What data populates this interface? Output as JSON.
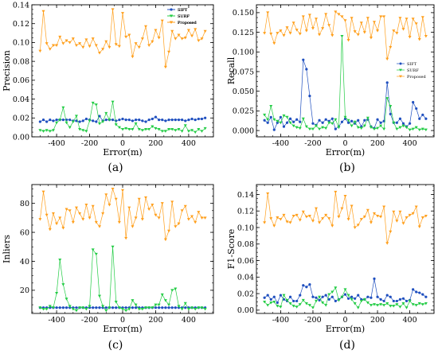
{
  "colors": {
    "SIFT": "#1f4fbf",
    "SURF": "#22cc44",
    "Proposed": "#ff9f1c"
  },
  "chart_data": [
    {
      "type": "line",
      "panel_label": "(a)",
      "xlabel": "Error(m)",
      "ylabel": "Precision",
      "xlim": [
        -550,
        550
      ],
      "ylim": [
        0,
        0.14
      ],
      "xticks": [
        -400,
        -200,
        0,
        200,
        400
      ],
      "yticks": [
        0.0,
        0.02,
        0.04,
        0.06,
        0.08,
        0.1,
        0.12,
        0.14
      ],
      "ytick_labels": [
        "0.00",
        "0.02",
        "0.04",
        "0.06",
        "0.08",
        "0.10",
        "0.12",
        "0.14"
      ],
      "legend_position": "top-right",
      "x": [
        -500,
        -480,
        -460,
        -440,
        -420,
        -400,
        -380,
        -360,
        -340,
        -320,
        -300,
        -280,
        -260,
        -240,
        -220,
        -200,
        -180,
        -160,
        -140,
        -120,
        -100,
        -80,
        -60,
        -40,
        -20,
        0,
        20,
        40,
        60,
        80,
        100,
        120,
        140,
        160,
        180,
        200,
        220,
        240,
        260,
        280,
        300,
        320,
        340,
        360,
        380,
        400,
        420,
        440,
        460,
        480,
        500
      ],
      "series": [
        {
          "name": "SIFT",
          "marker": "circle",
          "values": [
            0.016,
            0.018,
            0.016,
            0.018,
            0.017,
            0.018,
            0.018,
            0.018,
            0.018,
            0.018,
            0.017,
            0.017,
            0.016,
            0.017,
            0.019,
            0.018,
            0.017,
            0.016,
            0.022,
            0.017,
            0.018,
            0.018,
            0.018,
            0.017,
            0.018,
            0.019,
            0.018,
            0.018,
            0.017,
            0.018,
            0.018,
            0.017,
            0.016,
            0.018,
            0.019,
            0.021,
            0.018,
            0.018,
            0.017,
            0.018,
            0.018,
            0.018,
            0.018,
            0.018,
            0.017,
            0.018,
            0.019,
            0.018,
            0.019,
            0.019,
            0.02
          ]
        },
        {
          "name": "SURF",
          "marker": "triangle-down",
          "values": [
            0.007,
            0.006,
            0.007,
            0.006,
            0.007,
            0.015,
            0.018,
            0.031,
            0.015,
            0.01,
            0.016,
            0.022,
            0.008,
            0.007,
            0.006,
            0.017,
            0.036,
            0.034,
            0.014,
            0.016,
            0.025,
            0.018,
            0.037,
            0.013,
            0.01,
            0.008,
            0.009,
            0.008,
            0.008,
            0.014,
            0.008,
            0.007,
            0.008,
            0.008,
            0.011,
            0.009,
            0.008,
            0.006,
            0.006,
            0.008,
            0.008,
            0.007,
            0.008,
            0.006,
            0.012,
            0.006,
            0.007,
            0.005,
            0.008,
            0.006,
            0.009
          ]
        },
        {
          "name": "Proposed",
          "marker": "triangle-down",
          "values": [
            0.091,
            0.133,
            0.099,
            0.093,
            0.097,
            0.097,
            0.106,
            0.099,
            0.102,
            0.1,
            0.104,
            0.097,
            0.099,
            0.095,
            0.103,
            0.096,
            0.104,
            0.097,
            0.089,
            0.093,
            0.101,
            0.095,
            0.135,
            0.098,
            0.096,
            0.131,
            0.106,
            0.108,
            0.085,
            0.099,
            0.095,
            0.104,
            0.117,
            0.097,
            0.101,
            0.113,
            0.105,
            0.123,
            0.074,
            0.09,
            0.112,
            0.104,
            0.108,
            0.104,
            0.105,
            0.113,
            0.107,
            0.114,
            0.102,
            0.104,
            0.112
          ]
        }
      ]
    },
    {
      "type": "line",
      "panel_label": "(b)",
      "xlabel": "Error(m)",
      "ylabel": "Recall",
      "xlim": [
        -550,
        550
      ],
      "ylim": [
        -0.008,
        0.16
      ],
      "xticks": [
        -400,
        -200,
        0,
        200,
        400
      ],
      "yticks": [
        0.0,
        0.025,
        0.05,
        0.075,
        0.1,
        0.125,
        0.15
      ],
      "ytick_labels": [
        "0.000",
        "0.025",
        "0.050",
        "0.075",
        "0.100",
        "0.125",
        "0.150"
      ],
      "legend_position": "center-right",
      "x": [
        -500,
        -480,
        -460,
        -440,
        -420,
        -400,
        -380,
        -360,
        -340,
        -320,
        -300,
        -280,
        -260,
        -240,
        -220,
        -200,
        -180,
        -160,
        -140,
        -120,
        -100,
        -80,
        -60,
        -40,
        -20,
        0,
        20,
        40,
        60,
        80,
        100,
        120,
        140,
        160,
        180,
        200,
        220,
        240,
        260,
        280,
        300,
        320,
        340,
        360,
        380,
        400,
        420,
        440,
        460,
        480,
        500
      ],
      "series": [
        {
          "name": "SIFT",
          "marker": "circle",
          "values": [
            0.013,
            0.01,
            0.017,
            0.001,
            0.01,
            0.017,
            0.005,
            0.01,
            0.015,
            0.011,
            0.014,
            0.011,
            0.09,
            0.078,
            0.044,
            0.009,
            0.007,
            0.013,
            0.01,
            0.014,
            0.012,
            0.015,
            0.002,
            0.005,
            0.011,
            0.015,
            0.01,
            0.012,
            0.009,
            0.013,
            0.005,
            0.013,
            0.014,
            0.005,
            0.003,
            0.014,
            0.01,
            0.012,
            0.061,
            0.021,
            0.01,
            0.01,
            0.015,
            0.009,
            0.005,
            0.009,
            0.036,
            0.028,
            0.015,
            0.02,
            0.015
          ]
        },
        {
          "name": "SURF",
          "marker": "triangle-down",
          "values": [
            0.02,
            0.014,
            0.031,
            0.014,
            0.012,
            0.01,
            0.019,
            0.017,
            0.01,
            0.006,
            0.004,
            0.003,
            0.015,
            0.005,
            0.002,
            0.002,
            0.006,
            0.002,
            0.004,
            0.003,
            0.01,
            0.009,
            0.014,
            0.004,
            0.12,
            0.017,
            0.013,
            0.006,
            0.011,
            0.004,
            0.003,
            0.006,
            0.016,
            0.004,
            0.002,
            0.003,
            0.006,
            0.002,
            0.041,
            0.031,
            0.01,
            0.002,
            0.004,
            0.006,
            0.004,
            0.001,
            0.002,
            0.004,
            0.001,
            0.002,
            0.001
          ]
        },
        {
          "name": "Proposed",
          "marker": "triangle-down",
          "values": [
            0.124,
            0.15,
            0.123,
            0.111,
            0.124,
            0.127,
            0.121,
            0.131,
            0.124,
            0.137,
            0.128,
            0.123,
            0.145,
            0.127,
            0.147,
            0.13,
            0.142,
            0.122,
            0.13,
            0.148,
            0.134,
            0.121,
            0.151,
            0.148,
            0.145,
            0.14,
            0.115,
            0.143,
            0.126,
            0.122,
            0.137,
            0.125,
            0.143,
            0.118,
            0.138,
            0.127,
            0.145,
            0.145,
            0.091,
            0.106,
            0.127,
            0.124,
            0.143,
            0.129,
            0.142,
            0.119,
            0.142,
            0.136,
            0.116,
            0.144,
            0.12
          ]
        }
      ]
    },
    {
      "type": "line",
      "panel_label": "(c)",
      "xlabel": "Error(m)",
      "ylabel": "Inliers",
      "xlim": [
        -550,
        550
      ],
      "ylim": [
        4,
        93
      ],
      "xticks": [
        -400,
        -200,
        0,
        200,
        400
      ],
      "yticks": [
        20,
        40,
        60,
        80
      ],
      "ytick_labels": [
        "20",
        "40",
        "60",
        "80"
      ],
      "legend_position": "top-right",
      "x": [
        -500,
        -480,
        -460,
        -440,
        -420,
        -400,
        -380,
        -360,
        -340,
        -320,
        -300,
        -280,
        -260,
        -240,
        -220,
        -200,
        -180,
        -160,
        -140,
        -120,
        -100,
        -80,
        -60,
        -40,
        -20,
        0,
        20,
        40,
        60,
        80,
        100,
        120,
        140,
        160,
        180,
        200,
        220,
        240,
        260,
        280,
        300,
        320,
        340,
        360,
        380,
        400,
        420,
        440,
        460,
        480,
        500
      ],
      "series": [
        {
          "name": "SIFT",
          "marker": "circle",
          "values": [
            8,
            8,
            8,
            8,
            8,
            8,
            8,
            8,
            8,
            8,
            8,
            8,
            8,
            8,
            8,
            8,
            8,
            8,
            8,
            8,
            8,
            8,
            8,
            8,
            8,
            8,
            8,
            8,
            8,
            8,
            8,
            8,
            8,
            8,
            8,
            8,
            8,
            8,
            8,
            8,
            8,
            8,
            8,
            8,
            8,
            8,
            8,
            8,
            8,
            8,
            8
          ]
        },
        {
          "name": "SURF",
          "marker": "triangle-down",
          "values": [
            8,
            7,
            7,
            9,
            8,
            18,
            41,
            24,
            14,
            9,
            7,
            6,
            8,
            8,
            7,
            9,
            48,
            45,
            16,
            9,
            6,
            8,
            50,
            12,
            8,
            7,
            6,
            7,
            13,
            10,
            7,
            7,
            8,
            8,
            8,
            10,
            10,
            17,
            13,
            10,
            20,
            21,
            9,
            7,
            11,
            7,
            8,
            7,
            8,
            8,
            7
          ]
        },
        {
          "name": "Proposed",
          "marker": "triangle-down",
          "values": [
            69,
            88,
            72,
            62,
            73,
            66,
            70,
            63,
            76,
            75,
            67,
            77,
            73,
            69,
            79,
            70,
            78,
            67,
            64,
            73,
            86,
            79,
            90,
            83,
            67,
            89,
            56,
            77,
            64,
            70,
            83,
            69,
            84,
            76,
            79,
            72,
            70,
            80,
            55,
            61,
            81,
            64,
            66,
            75,
            78,
            69,
            71,
            67,
            74,
            70,
            70
          ]
        }
      ]
    },
    {
      "type": "line",
      "panel_label": "(d)",
      "xlabel": "Error(m)",
      "ylabel": "F1-Score",
      "xlim": [
        -550,
        550
      ],
      "ylim": [
        -0.004,
        0.152
      ],
      "xticks": [
        -400,
        -200,
        0,
        200,
        400
      ],
      "yticks": [
        0.0,
        0.02,
        0.04,
        0.06,
        0.08,
        0.1,
        0.12,
        0.14
      ],
      "ytick_labels": [
        "0.00",
        "0.02",
        "0.04",
        "0.06",
        "0.08",
        "0.10",
        "0.12",
        "0.14"
      ],
      "legend_position": "top-right",
      "x": [
        -500,
        -480,
        -460,
        -440,
        -420,
        -400,
        -380,
        -360,
        -340,
        -320,
        -300,
        -280,
        -260,
        -240,
        -220,
        -200,
        -180,
        -160,
        -140,
        -120,
        -100,
        -80,
        -60,
        -40,
        -20,
        0,
        20,
        40,
        60,
        80,
        100,
        120,
        140,
        160,
        180,
        200,
        220,
        240,
        260,
        280,
        300,
        320,
        340,
        360,
        380,
        400,
        420,
        440,
        460,
        480,
        500
      ],
      "series": [
        {
          "name": "SIFT",
          "marker": "circle",
          "values": [
            0.015,
            0.018,
            0.013,
            0.016,
            0.009,
            0.018,
            0.013,
            0.011,
            0.016,
            0.011,
            0.011,
            0.018,
            0.03,
            0.028,
            0.031,
            0.016,
            0.015,
            0.012,
            0.016,
            0.018,
            0.013,
            0.016,
            0.011,
            0.013,
            0.016,
            0.019,
            0.014,
            0.016,
            0.014,
            0.018,
            0.013,
            0.013,
            0.016,
            0.015,
            0.038,
            0.016,
            0.013,
            0.011,
            0.018,
            0.016,
            0.011,
            0.011,
            0.013,
            0.014,
            0.011,
            0.012,
            0.025,
            0.022,
            0.021,
            0.019,
            0.016
          ]
        },
        {
          "name": "SURF",
          "marker": "triangle-down",
          "values": [
            0.01,
            0.006,
            0.009,
            0.01,
            0.005,
            0.004,
            0.018,
            0.012,
            0.008,
            0.005,
            0.004,
            0.007,
            0.012,
            0.008,
            0.006,
            0.003,
            0.011,
            0.016,
            0.009,
            0.006,
            0.019,
            0.022,
            0.027,
            0.012,
            0.016,
            0.025,
            0.018,
            0.013,
            0.008,
            0.003,
            0.011,
            0.013,
            0.009,
            0.006,
            0.007,
            0.006,
            0.007,
            0.006,
            0.008,
            0.005,
            0.005,
            0.007,
            0.004,
            0.008,
            0.003,
            0.011,
            0.007,
            0.006,
            0.008,
            0.007,
            0.008
          ]
        },
        {
          "name": "Proposed",
          "marker": "triangle-down",
          "values": [
            0.106,
            0.141,
            0.111,
            0.102,
            0.112,
            0.11,
            0.115,
            0.107,
            0.106,
            0.114,
            0.115,
            0.109,
            0.119,
            0.113,
            0.114,
            0.108,
            0.123,
            0.106,
            0.111,
            0.115,
            0.111,
            0.102,
            0.143,
            0.113,
            0.123,
            0.138,
            0.11,
            0.126,
            0.1,
            0.103,
            0.11,
            0.113,
            0.121,
            0.106,
            0.117,
            0.114,
            0.113,
            0.125,
            0.081,
            0.095,
            0.119,
            0.108,
            0.119,
            0.105,
            0.112,
            0.115,
            0.117,
            0.125,
            0.101,
            0.112,
            0.114
          ]
        }
      ]
    }
  ]
}
